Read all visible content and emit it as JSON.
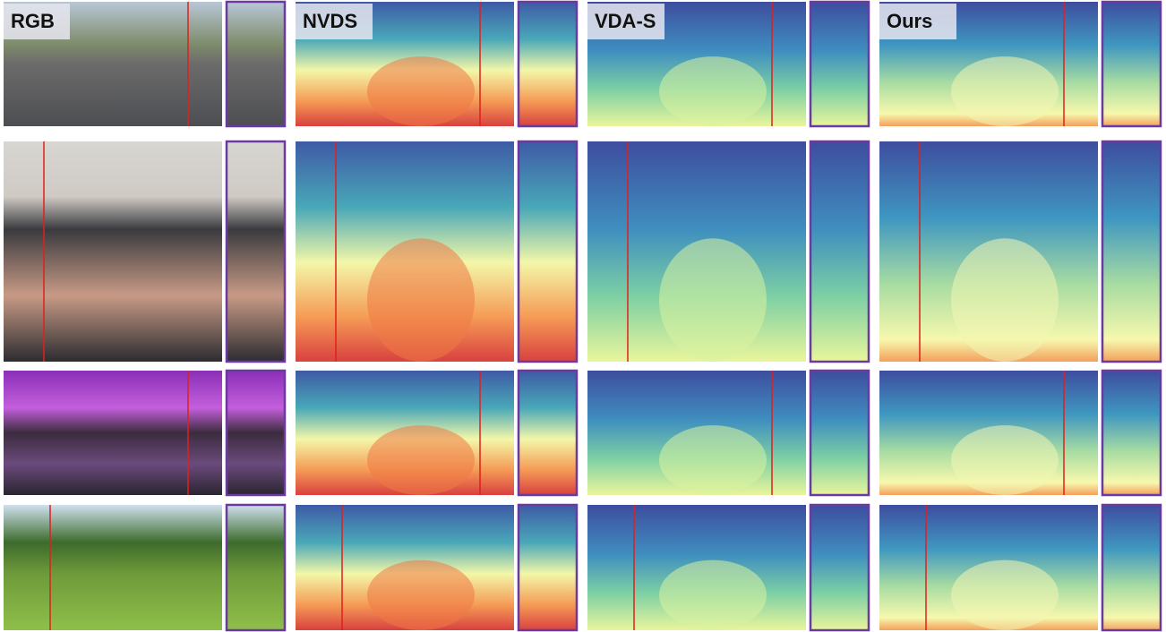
{
  "columns": [
    {
      "label": "RGB"
    },
    {
      "label": "NVDS"
    },
    {
      "label": "VDA-S"
    },
    {
      "label": "Ours"
    }
  ]
}
